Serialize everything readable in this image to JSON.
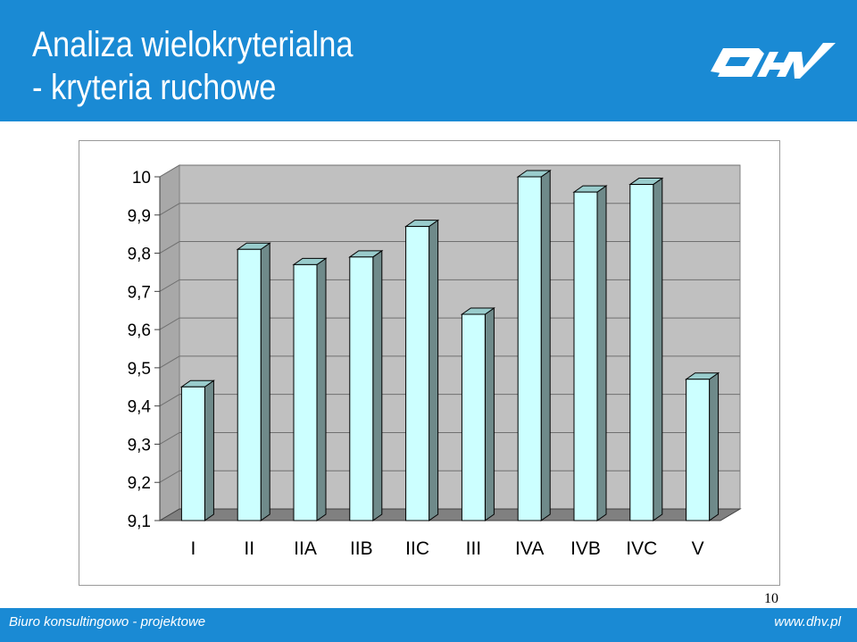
{
  "header": {
    "title_line1": "Analiza wielokryterialna",
    "title_line2": "- kryteria ruchowe",
    "background": "#1a8ad4",
    "logo_text": "DHV"
  },
  "chart_data": {
    "type": "bar",
    "style": "3d",
    "categories": [
      "I",
      "II",
      "IIA",
      "IIB",
      "IIC",
      "III",
      "IVA",
      "IVB",
      "IVC",
      "V"
    ],
    "values": [
      9.45,
      9.81,
      9.77,
      9.79,
      9.87,
      9.64,
      10.0,
      9.96,
      9.98,
      9.47
    ],
    "ylim": [
      9.1,
      10
    ],
    "yticks": [
      "9,1",
      "9,2",
      "9,3",
      "9,4",
      "9,5",
      "9,6",
      "9,7",
      "9,8",
      "9,9",
      "10"
    ],
    "grid": true,
    "legend": "none",
    "bar_color": "#ccffff",
    "bar_side_color": "#6f8a8a",
    "wall_color": "#c0c0c0",
    "floor_color": "#808080"
  },
  "page_number": "10",
  "footer": {
    "left_text": "Biuro konsultingowo - projektowe",
    "right_text": "www.dhv.pl",
    "background": "#1a8ad4"
  }
}
